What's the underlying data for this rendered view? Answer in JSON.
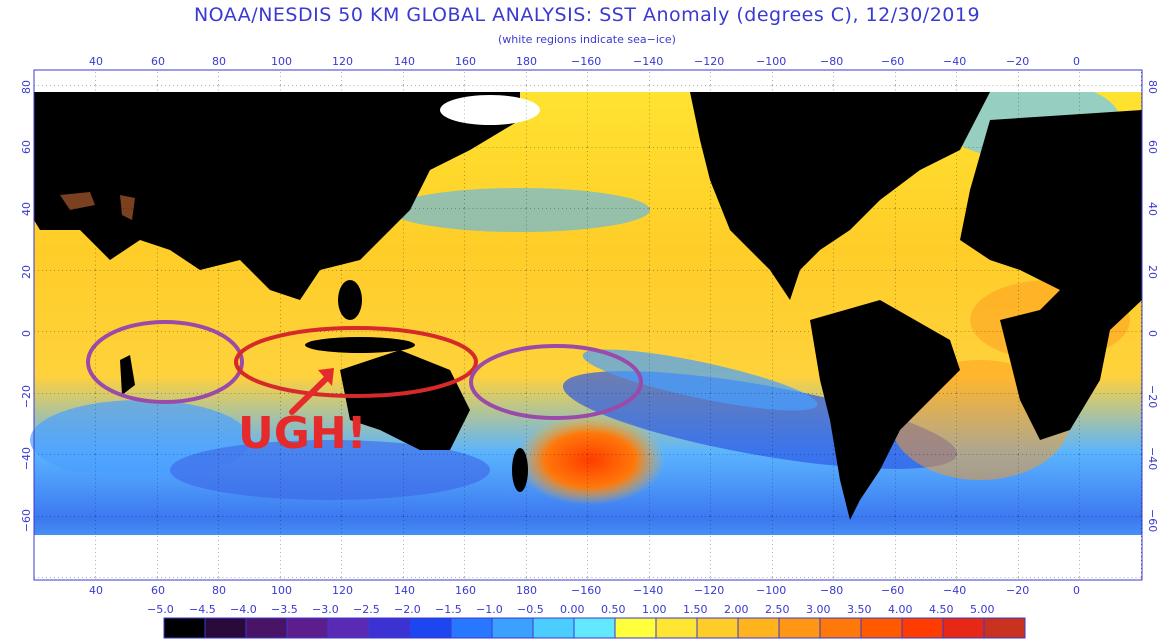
{
  "title": "NOAA/NESDIS 50 KM GLOBAL ANALYSIS: SST Anomaly (degrees C), 12/30/2019",
  "subtitle": "(white regions indicate sea−ice)",
  "lon_ticks": [
    "40",
    "60",
    "80",
    "100",
    "120",
    "140",
    "160",
    "180",
    "−160",
    "−140",
    "−120",
    "−100",
    "−80",
    "−60",
    "−40",
    "−20",
    "0"
  ],
  "lat_ticks_left": [
    "80",
    "60",
    "40",
    "20",
    "0",
    "−20",
    "−40",
    "−60"
  ],
  "lat_ticks_right": [
    "80",
    "60",
    "40",
    "20",
    "0",
    "−20",
    "−40",
    "−60"
  ],
  "annotation": {
    "text": "UGH!",
    "color": "#e42a2a"
  },
  "colorbar": {
    "labels": [
      "−5.0",
      "−4.5",
      "−4.0",
      "−3.5",
      "−3.0",
      "−2.5",
      "−2.0",
      "−1.5",
      "−1.0",
      "−0.5",
      "0.00",
      "0.50",
      "1.00",
      "1.50",
      "2.00",
      "2.50",
      "3.00",
      "3.50",
      "4.00",
      "4.50",
      "5.00"
    ],
    "colors": [
      "#000000",
      "#2a0a3a",
      "#4a1466",
      "#5c1e8c",
      "#5a2ab4",
      "#3c32d4",
      "#1e46f0",
      "#2878ff",
      "#3ca0ff",
      "#4ccdff",
      "#64e8ff",
      "#ffff3c",
      "#ffe632",
      "#ffcd28",
      "#ffb41e",
      "#ff9614",
      "#ff780a",
      "#ff5a00",
      "#ff3c00",
      "#e62814",
      "#c8321e"
    ]
  },
  "colors": {
    "ocean_warm": "#ffcd28",
    "ocean_cool": "#3ca0ff",
    "land": "#000000",
    "ice": "#ffffff",
    "circle_purple": "#9a4aa8",
    "circle_red": "#d62a2a"
  }
}
